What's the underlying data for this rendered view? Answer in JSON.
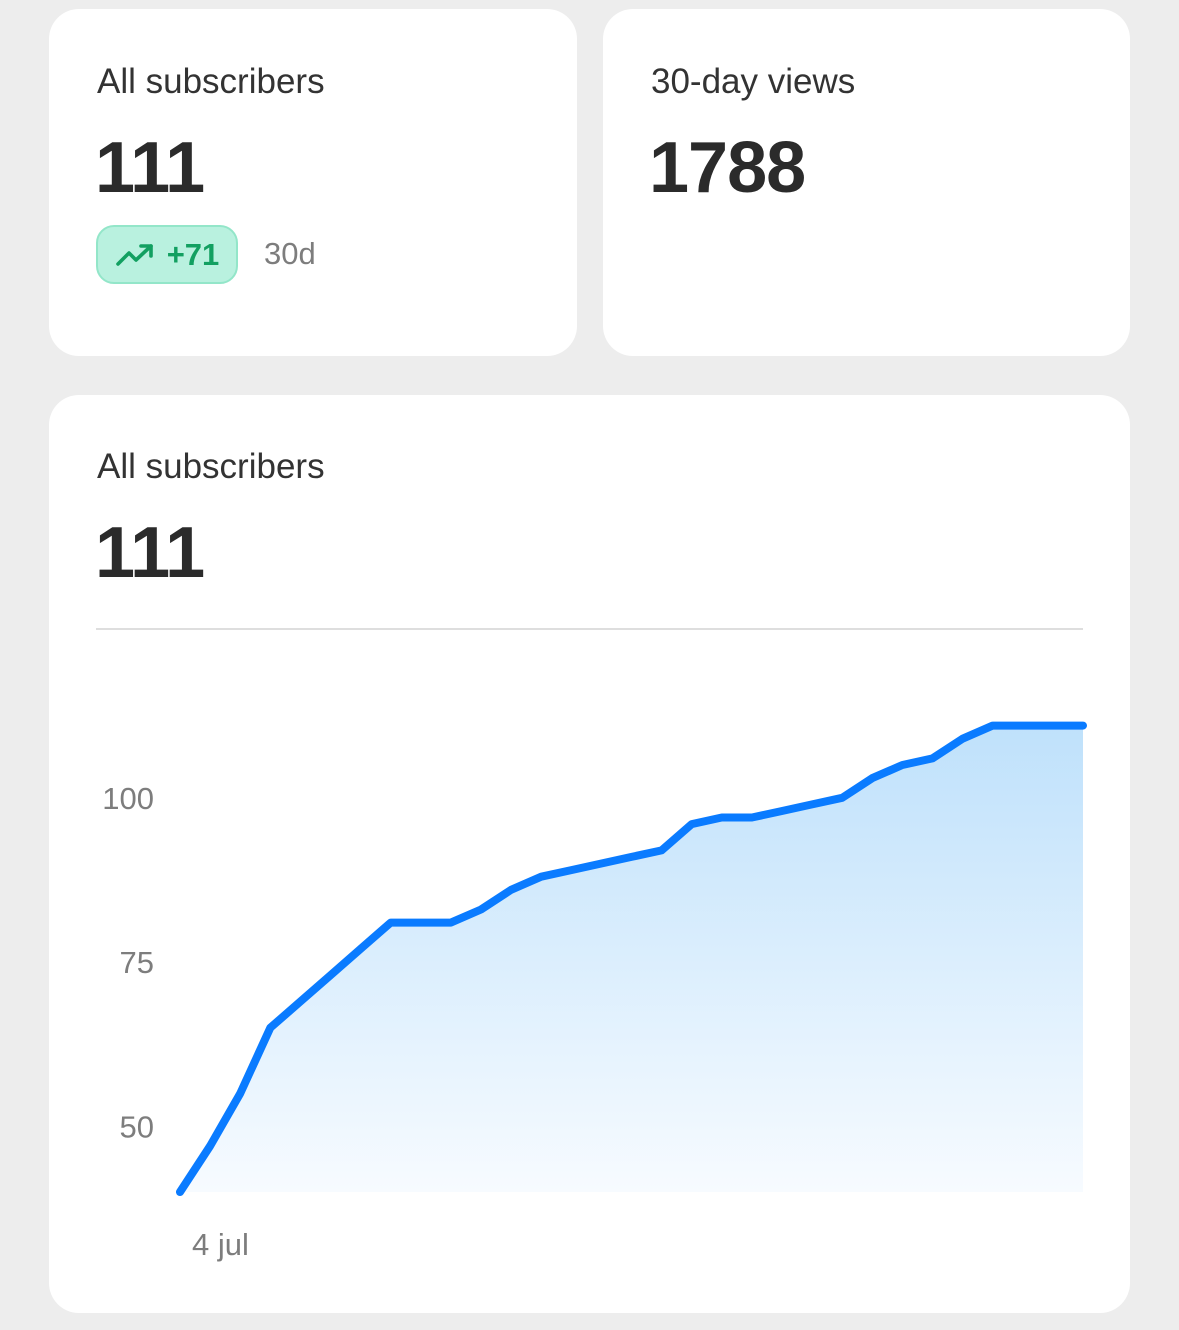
{
  "cards": {
    "subscribers": {
      "label": "All subscribers",
      "value": "111",
      "delta": "+71",
      "delta_icon": "trending-up-icon",
      "delta_color": "#12a061",
      "period": "30d"
    },
    "views": {
      "label": "30-day views",
      "value": "1788"
    }
  },
  "chart_card": {
    "label": "All subscribers",
    "value": "111"
  },
  "chart_data": {
    "type": "area",
    "title": "",
    "xlabel": "",
    "ylabel": "",
    "x_tick_labels": [
      "4 jul"
    ],
    "y_ticks": [
      50,
      75,
      100
    ],
    "ylim": [
      40,
      119
    ],
    "grid": false,
    "line_color": "#0a7bff",
    "fill_color": "#bfe1fb",
    "series": [
      {
        "values": [
          40,
          47,
          55,
          65,
          69,
          73,
          77,
          81,
          81,
          81,
          83,
          86,
          88,
          89,
          90,
          91,
          92,
          96,
          97,
          97,
          98,
          99,
          100,
          103,
          105,
          106,
          109,
          111,
          111,
          111,
          111
        ]
      }
    ]
  }
}
